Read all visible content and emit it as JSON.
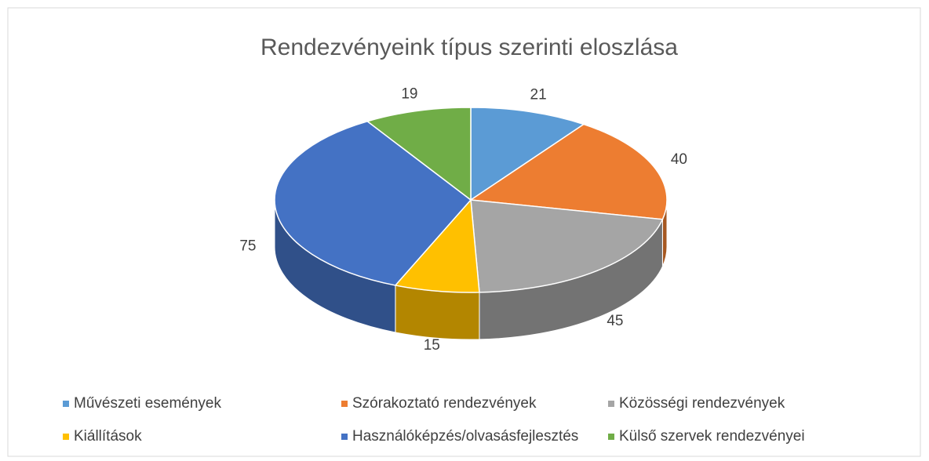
{
  "chart_data": {
    "type": "pie3d",
    "title": "Rendezvényeink típus szerinti eloszlása",
    "categories": [
      "Művészeti események",
      "Szórakoztató rendezvények",
      "Közösségi rendezvények",
      "Kiállítások",
      "Használóképzés/olvasásfejlesztés",
      "Külső szervek rendezvényei"
    ],
    "values": [
      21,
      40,
      45,
      15,
      75,
      19
    ],
    "colors": [
      "#5b9bd5",
      "#ed7d31",
      "#a5a5a5",
      "#ffc000",
      "#4472c4",
      "#70ad47"
    ],
    "legend": "bottom"
  }
}
